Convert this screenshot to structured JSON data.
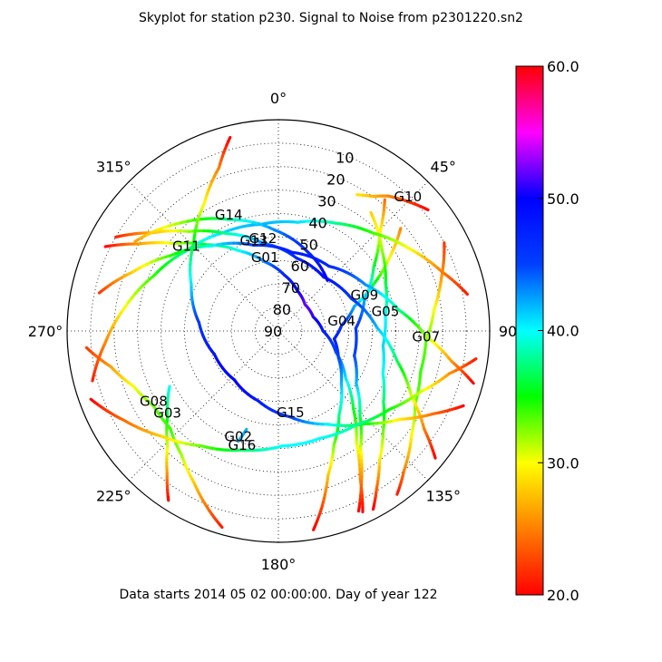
{
  "chart_data": {
    "type": "scatter",
    "projection": "polar",
    "title": "Skyplot for station p230.   Signal to Noise from p2301220.sn2",
    "footer": "Data starts 2014 05 02 00:00:00.  Day of year 122",
    "azimuth_ticks": [
      "0°",
      "45°",
      "90°",
      "135°",
      "180°",
      "225°",
      "270°",
      "315°"
    ],
    "elevation_ticks": [
      "10",
      "20",
      "30",
      "40",
      "50",
      "60",
      "70",
      "80",
      "90"
    ],
    "elevation_range": [
      0,
      90
    ],
    "grid": true,
    "colorbar": {
      "range": [
        20.0,
        60.0
      ],
      "ticks": [
        "20.0",
        "30.0",
        "40.0",
        "50.0",
        "60.0"
      ],
      "colormap": "hsv",
      "placement": "right"
    },
    "satellites": [
      {
        "label": "G01",
        "points": [
          [
            296,
            8,
            20
          ],
          [
            302,
            20,
            26
          ],
          [
            310,
            32,
            31
          ],
          [
            320,
            42,
            36
          ],
          [
            334,
            52,
            40
          ],
          [
            349,
            60,
            43
          ],
          [
            6,
            66,
            47
          ],
          [
            25,
            71,
            50
          ],
          [
            45,
            74,
            52
          ],
          [
            68,
            74,
            51
          ],
          [
            90,
            71,
            48
          ],
          [
            110,
            64,
            45
          ],
          [
            125,
            55,
            41
          ],
          [
            136,
            44,
            36
          ],
          [
            145,
            32,
            31
          ],
          [
            151,
            18,
            25
          ],
          [
            155,
            5,
            20
          ]
        ]
      },
      {
        "label": "G02",
        "points": [
          [
            200,
            40,
            42
          ],
          [
            198,
            46,
            42
          ]
        ]
      },
      {
        "label": "G03",
        "points": [
          [
            243,
            38,
            40
          ],
          [
            232,
            30,
            36
          ],
          [
            224,
            22,
            31
          ],
          [
            218,
            13,
            26
          ],
          [
            213,
            4,
            20
          ]
        ]
      },
      {
        "label": "G04",
        "points": [
          [
            50,
            22,
            25
          ],
          [
            57,
            34,
            30
          ],
          [
            64,
            45,
            36
          ],
          [
            72,
            56,
            42
          ],
          [
            85,
            63,
            46
          ],
          [
            98,
            66,
            48
          ],
          [
            114,
            62,
            45
          ],
          [
            130,
            55,
            42
          ],
          [
            144,
            46,
            38
          ],
          [
            154,
            36,
            33
          ],
          [
            161,
            25,
            28
          ],
          [
            166,
            13,
            23
          ],
          [
            170,
            4,
            20
          ]
        ]
      },
      {
        "label": "G05",
        "points": [
          [
            38,
            26,
            28
          ],
          [
            52,
            34,
            32
          ],
          [
            66,
            40,
            36
          ],
          [
            82,
            44,
            40
          ],
          [
            98,
            45,
            41
          ],
          [
            112,
            42,
            40
          ],
          [
            124,
            36,
            37
          ],
          [
            134,
            28,
            33
          ],
          [
            142,
            20,
            29
          ],
          [
            148,
            11,
            24
          ],
          [
            152,
            4,
            20
          ]
        ]
      },
      {
        "label": "G07",
        "points": [
          [
            62,
            10,
            22
          ],
          [
            72,
            17,
            26
          ],
          [
            82,
            23,
            30
          ],
          [
            94,
            27,
            33
          ],
          [
            106,
            27,
            34
          ],
          [
            118,
            24,
            33
          ],
          [
            128,
            18,
            30
          ],
          [
            138,
            10,
            25
          ],
          [
            144,
            4,
            21
          ]
        ]
      },
      {
        "label": "G08",
        "points": [
          [
            265,
            8,
            22
          ],
          [
            258,
            17,
            26
          ],
          [
            249,
            24,
            30
          ],
          [
            239,
            28,
            33
          ],
          [
            228,
            28,
            34
          ],
          [
            218,
            23,
            32
          ],
          [
            209,
            16,
            28
          ],
          [
            201,
            8,
            24
          ],
          [
            196,
            3,
            21
          ]
        ]
      },
      {
        "label": "G09",
        "points": [
          [
            39,
            18,
            24
          ],
          [
            46,
            30,
            30
          ],
          [
            56,
            41,
            36
          ],
          [
            70,
            51,
            42
          ],
          [
            88,
            57,
            46
          ],
          [
            108,
            56,
            45
          ],
          [
            124,
            50,
            42
          ],
          [
            136,
            40,
            37
          ],
          [
            145,
            29,
            31
          ],
          [
            151,
            17,
            25
          ],
          [
            156,
            6,
            20
          ]
        ]
      },
      {
        "label": "G10",
        "points": [
          [
            51,
            8,
            20
          ],
          [
            45,
            12,
            22
          ],
          [
            39,
            16,
            25
          ],
          [
            35,
            20,
            27
          ],
          [
            30,
            23,
            29
          ]
        ]
      },
      {
        "label": "G11",
        "points": [
          [
            255,
            8,
            21
          ],
          [
            266,
            16,
            25
          ],
          [
            279,
            24,
            30
          ],
          [
            294,
            32,
            34
          ],
          [
            311,
            38,
            38
          ],
          [
            331,
            42,
            41
          ],
          [
            351,
            44,
            42
          ],
          [
            10,
            43,
            41
          ],
          [
            28,
            38,
            38
          ],
          [
            44,
            32,
            34
          ],
          [
            58,
            24,
            30
          ],
          [
            70,
            16,
            25
          ],
          [
            79,
            8,
            21
          ]
        ]
      },
      {
        "label": "G12",
        "points": [
          [
            300,
            10,
            21
          ],
          [
            308,
            22,
            27
          ],
          [
            318,
            33,
            32
          ],
          [
            332,
            43,
            38
          ],
          [
            350,
            52,
            43
          ],
          [
            14,
            58,
            47
          ],
          [
            40,
            60,
            49
          ],
          [
            66,
            56,
            46
          ],
          [
            88,
            48,
            42
          ],
          [
            104,
            38,
            37
          ],
          [
            116,
            27,
            31
          ],
          [
            124,
            15,
            25
          ],
          [
            129,
            4,
            20
          ]
        ]
      },
      {
        "label": "G13",
        "points": [
          [
            282,
            12,
            22
          ],
          [
            292,
            23,
            28
          ],
          [
            305,
            34,
            34
          ],
          [
            322,
            44,
            40
          ],
          [
            344,
            52,
            45
          ],
          [
            10,
            56,
            48
          ],
          [
            38,
            55,
            47
          ],
          [
            62,
            48,
            43
          ],
          [
            80,
            38,
            38
          ],
          [
            92,
            27,
            32
          ],
          [
            100,
            15,
            26
          ],
          [
            105,
            4,
            20
          ]
        ]
      },
      {
        "label": "G14",
        "points": [
          [
            302,
            18,
            26
          ],
          [
            318,
            28,
            32
          ],
          [
            336,
            38,
            38
          ],
          [
            358,
            47,
            43
          ],
          [
            20,
            54,
            47
          ],
          [
            44,
            60,
            50
          ]
        ]
      },
      {
        "label": "G15",
        "points": [
          [
            112,
            5,
            20
          ],
          [
            118,
            15,
            24
          ],
          [
            126,
            26,
            29
          ],
          [
            137,
            36,
            35
          ],
          [
            152,
            45,
            40
          ],
          [
            172,
            53,
            45
          ],
          [
            196,
            59,
            48
          ],
          [
            222,
            62,
            50
          ],
          [
            250,
            61,
            49
          ],
          [
            276,
            56,
            46
          ],
          [
            298,
            48,
            41
          ],
          [
            316,
            38,
            36
          ],
          [
            330,
            27,
            30
          ],
          [
            340,
            16,
            25
          ],
          [
            346,
            5,
            20
          ]
        ]
      },
      {
        "label": "G16",
        "points": [
          [
            250,
            5,
            20
          ],
          [
            240,
            14,
            24
          ],
          [
            228,
            23,
            28
          ],
          [
            214,
            31,
            33
          ],
          [
            197,
            37,
            37
          ],
          [
            178,
            41,
            40
          ],
          [
            159,
            41,
            40
          ],
          [
            140,
            38,
            38
          ],
          [
            125,
            32,
            35
          ],
          [
            113,
            24,
            31
          ],
          [
            104,
            15,
            26
          ],
          [
            98,
            5,
            21
          ]
        ]
      }
    ]
  }
}
